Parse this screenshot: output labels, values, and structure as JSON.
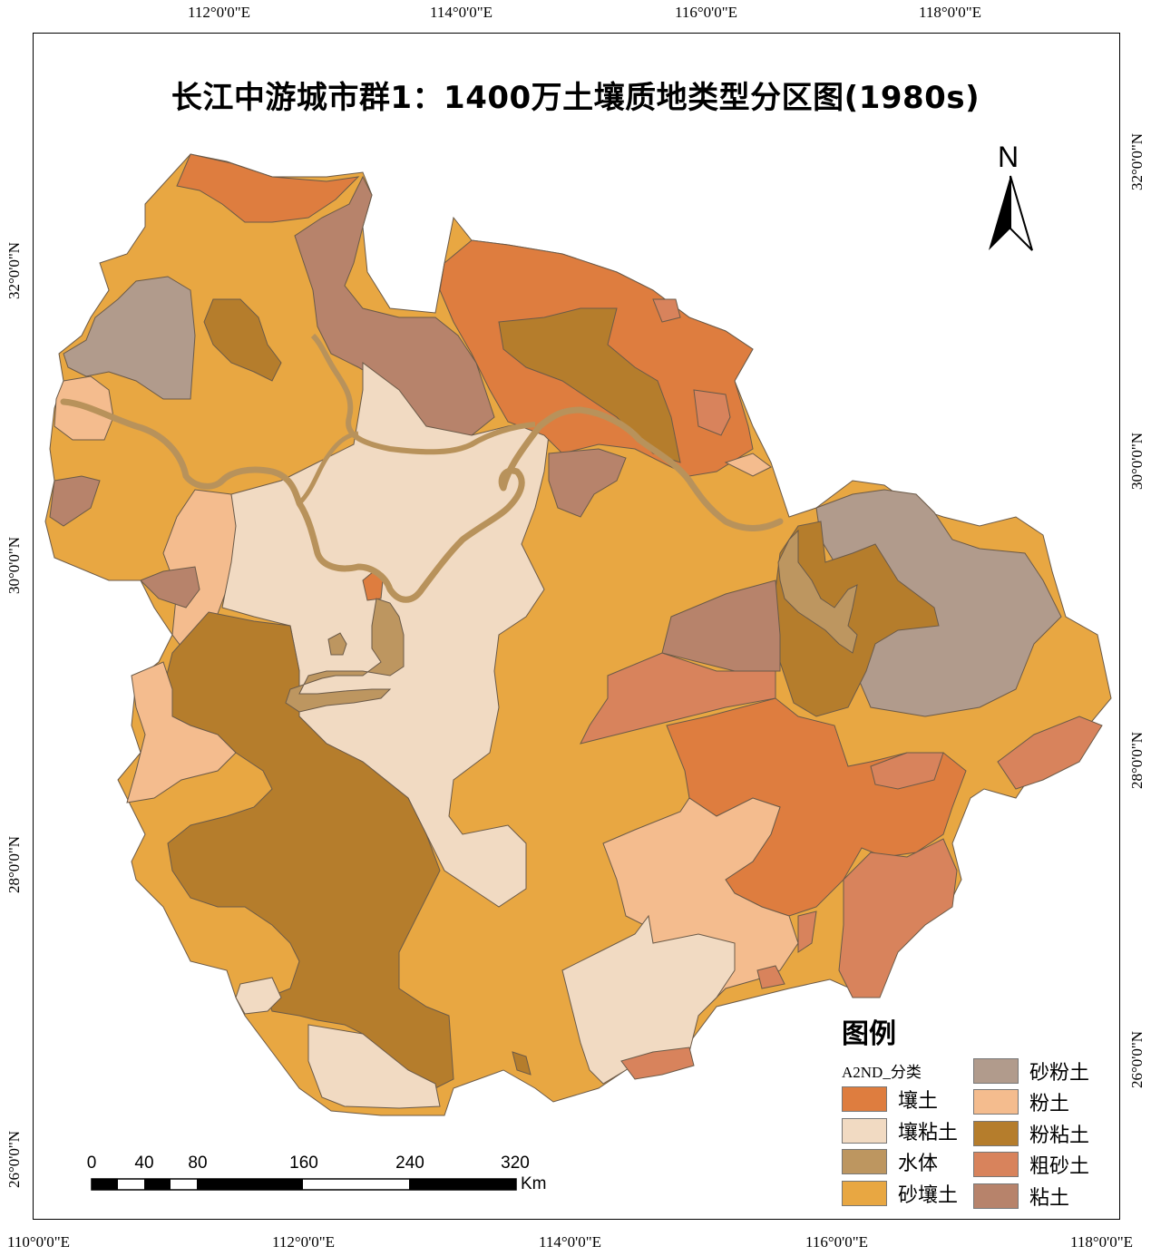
{
  "title": "长江中游城市群1：1400万土壤质地类型分区图(1980s)",
  "north": {
    "letter": "N",
    "icon": "north-arrow-icon"
  },
  "coords": {
    "top": [
      "112°0'0\"E",
      "114°0'0\"E",
      "116°0'0\"E",
      "118°0'0\"E"
    ],
    "bottom": [
      "110°0'0\"E",
      "112°0'0\"E",
      "114°0'0\"E",
      "116°0'0\"E",
      "118°0'0\"E"
    ],
    "left": [
      "32°0'0\"N",
      "30°0'0\"N",
      "28°0'0\"N",
      "26°0'0\"N"
    ],
    "right": [
      "32°0'0\"N",
      "30°0'0\"N",
      "28°0'0\"N",
      "26°0'0\"N"
    ]
  },
  "legend": {
    "title": "图例",
    "subtitle": "A2ND_分类",
    "items": [
      {
        "label": "壤土",
        "color": "#DE7D3F"
      },
      {
        "label": "壤粘土",
        "color": "#F1DAC2"
      },
      {
        "label": "水体",
        "color": "#BD9660"
      },
      {
        "label": "砂壤土",
        "color": "#E8A742"
      },
      {
        "label": "砂粉土",
        "color": "#B19B8C"
      },
      {
        "label": "粉土",
        "color": "#F4BC8E"
      },
      {
        "label": "粉粘土",
        "color": "#B57D2C"
      },
      {
        "label": "粗砂土",
        "color": "#D8835C"
      },
      {
        "label": "粘土",
        "color": "#B7836B"
      }
    ]
  },
  "scale_bar": {
    "labels": [
      "0",
      "40",
      "80",
      "160",
      "240",
      "320"
    ],
    "unit": "Km"
  }
}
